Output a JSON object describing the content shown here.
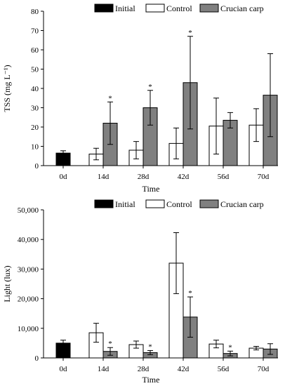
{
  "colors": {
    "Initial": "#000000",
    "Control": "#ffffff",
    "Crucian carp": "#808080"
  },
  "chart_data": [
    {
      "type": "bar",
      "xlabel": "Time",
      "ylabel": "TSS (mg L⁻¹)",
      "ylim": [
        0,
        80
      ],
      "yticks": [
        0,
        10,
        20,
        30,
        40,
        50,
        60,
        70,
        80
      ],
      "ytick_labels": [
        "0",
        "10",
        "20",
        "30",
        "40",
        "50",
        "60",
        "70",
        "80"
      ],
      "categories": [
        "0d",
        "14d",
        "28d",
        "42d",
        "56d",
        "70d"
      ],
      "legend": [
        "Initial",
        "Control",
        "Crucian carp"
      ],
      "legend_position": "top",
      "series": [
        {
          "name": "Initial",
          "values": [
            6.5,
            null,
            null,
            null,
            null,
            null
          ],
          "errors": [
            1.2,
            null,
            null,
            null,
            null,
            null
          ],
          "sig": [
            false,
            false,
            false,
            false,
            false,
            false
          ]
        },
        {
          "name": "Control",
          "values": [
            null,
            6,
            8,
            11.5,
            20.5,
            21
          ],
          "errors": [
            null,
            3,
            4.5,
            8,
            14.5,
            8.5
          ],
          "sig": [
            false,
            false,
            false,
            false,
            false,
            false
          ]
        },
        {
          "name": "Crucian carp",
          "values": [
            null,
            22,
            30,
            43,
            23.5,
            36.5
          ],
          "errors": [
            null,
            11,
            9,
            24,
            4,
            21.5
          ],
          "sig": [
            false,
            true,
            true,
            true,
            false,
            false
          ]
        }
      ]
    },
    {
      "type": "bar",
      "xlabel": "Time",
      "ylabel": "Light (lux)",
      "ylim": [
        0,
        50000
      ],
      "yticks": [
        0,
        10000,
        20000,
        30000,
        40000,
        50000
      ],
      "ytick_labels": [
        "0",
        "10,000",
        "20,000",
        "30,000",
        "40,000",
        "50,000"
      ],
      "categories": [
        "0d",
        "14d",
        "28d",
        "42d",
        "56d",
        "70d"
      ],
      "legend": [
        "Initial",
        "Control",
        "Crucian carp"
      ],
      "legend_position": "top",
      "series": [
        {
          "name": "Initial",
          "values": [
            5000,
            null,
            null,
            null,
            null,
            null
          ],
          "errors": [
            1000,
            null,
            null,
            null,
            null,
            null
          ],
          "sig": [
            false,
            false,
            false,
            false,
            false,
            false
          ]
        },
        {
          "name": "Control",
          "values": [
            null,
            8500,
            4500,
            32000,
            4700,
            3300
          ],
          "errors": [
            null,
            3200,
            1200,
            10300,
            1300,
            600
          ],
          "sig": [
            false,
            false,
            false,
            false,
            false,
            false
          ]
        },
        {
          "name": "Crucian carp",
          "values": [
            null,
            2200,
            1800,
            13800,
            1500,
            3000
          ],
          "errors": [
            null,
            1300,
            700,
            6800,
            800,
            1800
          ],
          "sig": [
            false,
            true,
            true,
            true,
            true,
            false
          ]
        }
      ]
    }
  ],
  "sig_symbol": "*"
}
